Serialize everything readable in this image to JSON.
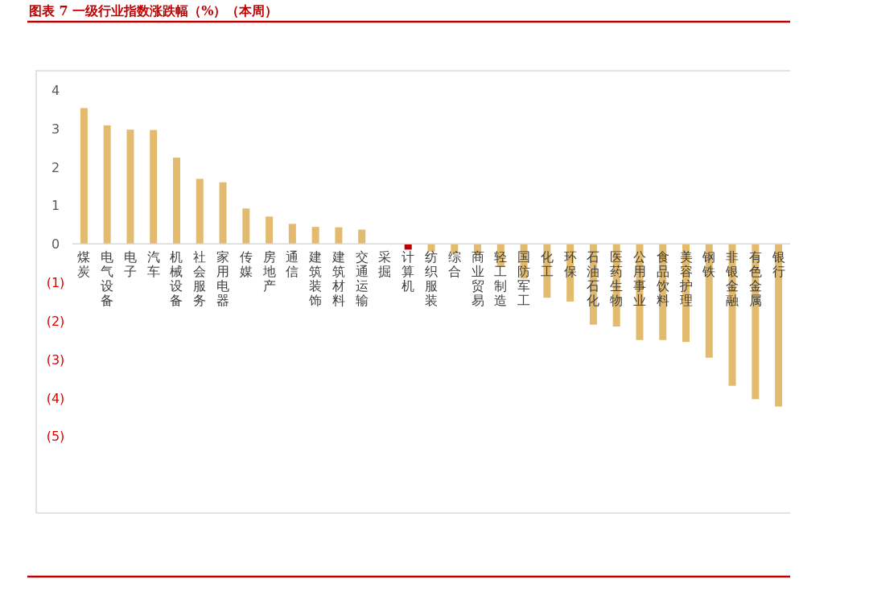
{
  "chart_data": {
    "type": "bar",
    "title": "图表 7 一级行业指数涨跌幅（%）（本周）",
    "categories": [
      "煤炭",
      "电气设备",
      "电子",
      "汽车",
      "机械设备",
      "社会服务",
      "家用电器",
      "传媒",
      "房地产",
      "通信",
      "建筑装饰",
      "建筑材料",
      "交通运输",
      "采掘",
      "计算机",
      "纺织服装",
      "综合",
      "商业贸易",
      "轻工制造",
      "国防军工",
      "化工",
      "环保",
      "石油石化",
      "医药生物",
      "公用事业",
      "食品饮料",
      "美容护理",
      "钢铁",
      "非银金融",
      "有色金属",
      "银行"
    ],
    "values": [
      3.53,
      3.08,
      2.97,
      2.96,
      2.24,
      1.69,
      1.6,
      0.92,
      0.71,
      0.52,
      0.44,
      0.43,
      0.37,
      0,
      -0.15,
      -0.2,
      -0.25,
      -0.3,
      -0.6,
      -0.9,
      -1.4,
      -1.5,
      -2.1,
      -2.15,
      -2.5,
      -2.5,
      -2.55,
      -2.96,
      -3.69,
      -4.04,
      -4.23
    ],
    "colors": [
      "#e2bb6f",
      "#e2bb6f",
      "#e2bb6f",
      "#e2bb6f",
      "#e2bb6f",
      "#e2bb6f",
      "#e2bb6f",
      "#e2bb6f",
      "#e2bb6f",
      "#e2bb6f",
      "#e2bb6f",
      "#e2bb6f",
      "#e2bb6f",
      "#e2bb6f",
      "#c00000",
      "#e2bb6f",
      "#e2bb6f",
      "#e2bb6f",
      "#e2bb6f",
      "#e2bb6f",
      "#e2bb6f",
      "#e2bb6f",
      "#e2bb6f",
      "#e2bb6f",
      "#e2bb6f",
      "#e2bb6f",
      "#e2bb6f",
      "#e2bb6f",
      "#e2bb6f",
      "#e2bb6f",
      "#e2bb6f"
    ],
    "ylim": [
      -7,
      4.5
    ],
    "yticks": [
      4,
      3,
      2,
      1,
      0,
      {
        "value": -1,
        "label": "(1)"
      },
      {
        "value": -2,
        "label": "(2)"
      },
      {
        "value": -3,
        "label": "(3)"
      },
      {
        "value": -4,
        "label": "(4)"
      },
      {
        "value": -5,
        "label": "(5)"
      }
    ]
  }
}
